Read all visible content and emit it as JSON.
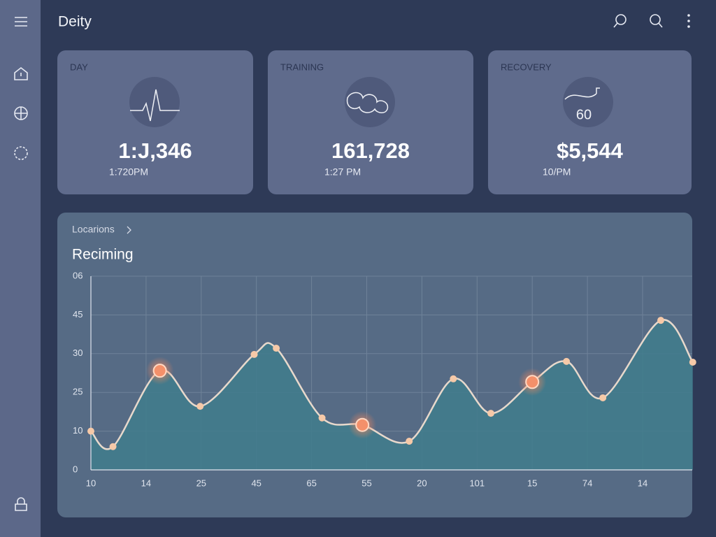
{
  "header": {
    "title": "Deity"
  },
  "cards": [
    {
      "label": "DAY",
      "value": "1:J,346",
      "sub": "1:720PM"
    },
    {
      "label": "TRAINING",
      "value": "161,728",
      "sub": "1:27 PM"
    },
    {
      "label": "RECOVERY",
      "icon_text": "60",
      "value": "$5,544",
      "sub": "10/PM"
    }
  ],
  "panel": {
    "breadcrumb": "Locarions",
    "chart_data": {
      "type": "area",
      "title": "Reciming",
      "x": [
        0,
        0.4,
        1.25,
        1.98,
        2.96,
        3.36,
        4.19,
        4.92,
        5.77,
        6.57,
        7.25,
        8.0,
        8.62,
        9.28,
        10.33,
        10.91
      ],
      "series": [
        {
          "color": "#e8d9cc",
          "values": [
            10,
            6,
            25.6,
            16.4,
            29.8,
            31.4,
            13.4,
            11.6,
            7.4,
            23.5,
            14.6,
            22.7,
            28,
            18.6,
            38.6,
            27.8
          ]
        }
      ],
      "highlighted": [
        2,
        7,
        11
      ],
      "xlim": [
        0,
        10.9
      ],
      "xticks": [
        {
          "value": 0,
          "label": "10"
        },
        {
          "value": 1,
          "label": "14"
        },
        {
          "value": 2,
          "label": "25"
        },
        {
          "value": 3,
          "label": "45"
        },
        {
          "value": 4,
          "label": "65"
        },
        {
          "value": 5,
          "label": "55"
        },
        {
          "value": 6,
          "label": "20"
        },
        {
          "value": 7,
          "label": "101"
        },
        {
          "value": 8,
          "label": "15"
        },
        {
          "value": 9,
          "label": "74"
        },
        {
          "value": 10,
          "label": "14"
        }
      ],
      "ylim": [
        0,
        50
      ],
      "yticks": [
        0,
        10,
        {
          "value": 20,
          "label": "25"
        },
        30,
        {
          "value": 40,
          "label": "45"
        },
        {
          "value": 50,
          "label": "06"
        }
      ],
      "grid": true
    }
  }
}
